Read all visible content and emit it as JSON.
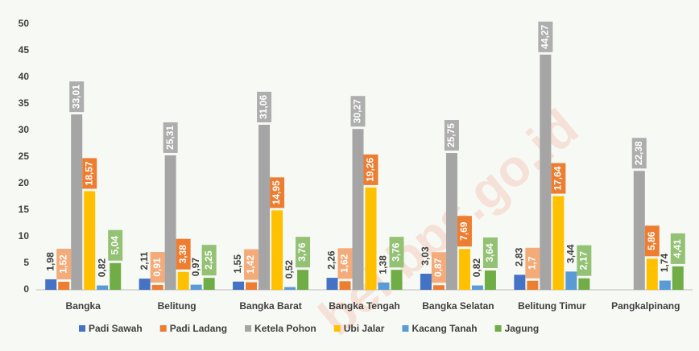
{
  "chart_data": {
    "type": "bar",
    "watermark": "bel.bps.go.id",
    "categories": [
      "Bangka",
      "Belitung",
      "Bangka Barat",
      "Bangka Tengah",
      "Bangka Selatan",
      "Belitung Timur",
      "Pangkalpinang"
    ],
    "series": [
      {
        "name": "Padi Sawah",
        "color": "#4472c4",
        "values": [
          1.98,
          2.11,
          1.55,
          2.26,
          3.03,
          2.83,
          null
        ],
        "value_labels": [
          "1,98",
          "2,11",
          "1,55",
          "2,26",
          "3,03",
          "2,83",
          null
        ]
      },
      {
        "name": "Padi Ladang",
        "color": "#ed7d31",
        "values": [
          1.52,
          0.91,
          1.42,
          1.62,
          0.87,
          1.7,
          null
        ],
        "value_labels": [
          "1,52",
          "0,91",
          "1,42",
          "1,62",
          "0,87",
          "1,7",
          null
        ]
      },
      {
        "name": "Ketela Pohon",
        "color": "#a5a5a5",
        "values": [
          33.01,
          25.31,
          31.06,
          30.27,
          25.75,
          44.27,
          22.38
        ],
        "value_labels": [
          "33,01",
          "25,31",
          "31,06",
          "30,27",
          "25,75",
          "44,27",
          "22,38"
        ]
      },
      {
        "name": "Ubi Jalar",
        "color": "#ffc000",
        "values": [
          18.57,
          3.38,
          14.95,
          19.26,
          7.69,
          17.64,
          5.86
        ],
        "value_labels": [
          "18,57",
          "3,38",
          "14,95",
          "19,26",
          "7,69",
          "17,64",
          "5,86"
        ]
      },
      {
        "name": "Kacang Tanah",
        "color": "#5b9bd5",
        "values": [
          0.82,
          0.97,
          0.52,
          1.38,
          0.82,
          3.44,
          1.74
        ],
        "value_labels": [
          "0,82",
          "0,97",
          "0,52",
          "1,38",
          "0,82",
          "3,44",
          "1,74"
        ]
      },
      {
        "name": "Jagung",
        "color": "#70ad47",
        "values": [
          5.04,
          2.25,
          3.76,
          3.76,
          3.64,
          2.17,
          4.41
        ],
        "value_labels": [
          "5,04",
          "2,25",
          "3,76",
          "3,76",
          "3,64",
          "2,17",
          "4,41"
        ]
      }
    ],
    "ylim": [
      0,
      50
    ],
    "yticks": [
      0,
      5,
      10,
      15,
      20,
      25,
      30,
      35,
      40,
      45,
      50
    ],
    "grid": false,
    "legend": "bottom"
  }
}
